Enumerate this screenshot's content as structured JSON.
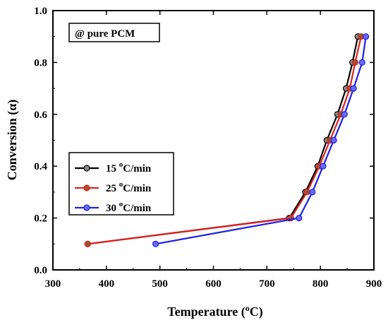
{
  "chart_data": {
    "type": "line",
    "annotation": "@ pure PCM",
    "xlabel": "Temperature",
    "xlabel_unit_sup": "o",
    "xlabel_unit": "C",
    "ylabel": "Conversion (α)",
    "xlim": [
      300,
      900
    ],
    "ylim": [
      0.0,
      1.0
    ],
    "xticks": [
      "300",
      "400",
      "500",
      "600",
      "700",
      "800",
      "900"
    ],
    "yticks": [
      "0.0",
      "0.2",
      "0.4",
      "0.6",
      "0.8",
      "1.0"
    ],
    "legend_position": "middle-left",
    "series": [
      {
        "name_pre": "15 ",
        "name_sup": "o",
        "name_post": "C/min",
        "color": "#000000",
        "marker_fill": "#888888",
        "points": [
          [
            365,
            0.1
          ],
          [
            742,
            0.2
          ],
          [
            772,
            0.3
          ],
          [
            795,
            0.4
          ],
          [
            812,
            0.5
          ],
          [
            832,
            0.6
          ],
          [
            848,
            0.7
          ],
          [
            860,
            0.8
          ],
          [
            870,
            0.9
          ]
        ]
      },
      {
        "name_pre": "25 ",
        "name_sup": "o",
        "name_post": "C/min",
        "color": "#e02020",
        "marker_fill": "#a0522d",
        "points": [
          [
            365,
            0.1
          ],
          [
            745,
            0.2
          ],
          [
            775,
            0.3
          ],
          [
            798,
            0.4
          ],
          [
            818,
            0.5
          ],
          [
            838,
            0.6
          ],
          [
            855,
            0.7
          ],
          [
            865,
            0.8
          ],
          [
            876,
            0.9
          ]
        ]
      },
      {
        "name_pre": "30 ",
        "name_sup": "o",
        "name_post": "C/min",
        "color": "#1f1fe6",
        "marker_fill": "#6a6aff",
        "points": [
          [
            492,
            0.1
          ],
          [
            760,
            0.2
          ],
          [
            785,
            0.3
          ],
          [
            805,
            0.4
          ],
          [
            825,
            0.5
          ],
          [
            845,
            0.6
          ],
          [
            862,
            0.7
          ],
          [
            878,
            0.8
          ],
          [
            885,
            0.9
          ]
        ]
      }
    ]
  }
}
